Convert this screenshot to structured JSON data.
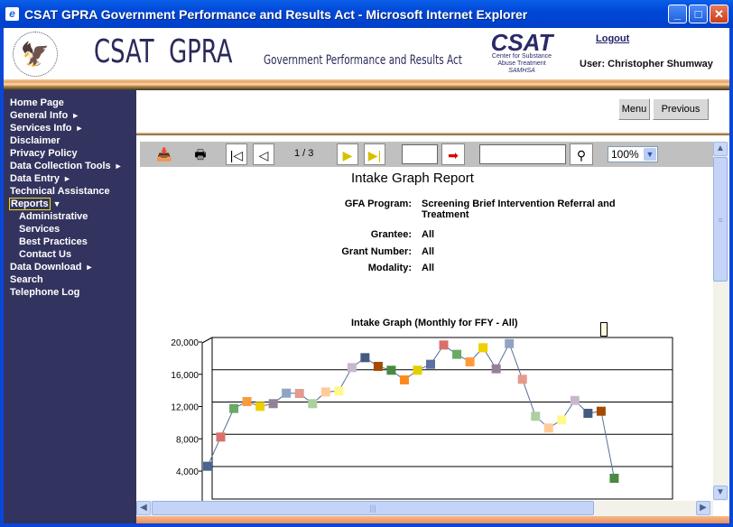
{
  "window": {
    "title": "CSAT GPRA Government Performance and Results Act - Microsoft Internet Explorer"
  },
  "header": {
    "brand": "CSAT  GPRA",
    "brand_sub": "Government Performance and Results Act",
    "csat_logo": "CSAT",
    "csat_lines": [
      "Center for Substance",
      "Abuse Treatment",
      "SAMHSA"
    ],
    "logout": "Logout",
    "user": "User: Christopher Shumway"
  },
  "sidebar": {
    "items": [
      {
        "label": "Home Page"
      },
      {
        "label": "General Info",
        "arrow": "►"
      },
      {
        "label": "Services Info",
        "arrow": "►"
      },
      {
        "label": "Disclaimer"
      },
      {
        "label": "Privacy Policy"
      },
      {
        "label": "Data Collection Tools",
        "arrow": "►"
      },
      {
        "label": "Data Entry",
        "arrow": "►"
      },
      {
        "label": "Technical Assistance"
      },
      {
        "label": "Reports",
        "arrow": "▼"
      },
      {
        "label": "Administrative"
      },
      {
        "label": "Services"
      },
      {
        "label": "Best Practices"
      },
      {
        "label": "Contact Us"
      },
      {
        "label": "Data Download",
        "arrow": "►"
      },
      {
        "label": "Search"
      },
      {
        "label": "Telephone Log"
      }
    ]
  },
  "buttons": {
    "menu": "Menu",
    "previous": "Previous"
  },
  "viewer": {
    "page": "1 / 3",
    "zoom": "100%",
    "goto_value": "",
    "search_value": ""
  },
  "report": {
    "title": "Intake Graph Report",
    "fields": [
      {
        "label": "GFA Program:",
        "value": "Screening Brief Intervention Referral and Treatment"
      },
      {
        "label": "Grantee:",
        "value": "All"
      },
      {
        "label": "Grant Number:",
        "value": "All"
      },
      {
        "label": "Modality:",
        "value": "All"
      }
    ]
  },
  "chart_data": {
    "type": "line",
    "title": "Intake Graph (Monthly for FFY - All)",
    "ylim": [
      0,
      20000
    ],
    "yticks": [
      "20,000",
      "16,000",
      "12,000",
      "8,000",
      "4,000"
    ],
    "ytick_values": [
      20000,
      16000,
      12000,
      8000,
      4000
    ],
    "grid": true,
    "values": [
      4600,
      8220,
      11760,
      12620,
      12020,
      12360,
      13660,
      13620,
      12360,
      13810,
      13930,
      16830,
      18060,
      16980,
      16500,
      15300,
      16500,
      17240,
      19630,
      18470,
      17540,
      19290,
      16680,
      19810,
      15380,
      10790,
      9340,
      10350,
      12760,
      11160,
      11420,
      3110
    ],
    "line_color": "#5a6e98",
    "marker_colors": [
      "#4a6490",
      "#d9706a",
      "#6aaa64",
      "#ff9a3a",
      "#eed000",
      "#958099",
      "#8ea4c2",
      "#e49a8c",
      "#acd0a0",
      "#ffcc99",
      "#fff88a",
      "#c8b8cc",
      "#445a80",
      "#a54a00",
      "#4a8a40",
      "#ff8a20",
      "#e0d000",
      "#5a70a0",
      "#d9706a",
      "#6aaa64",
      "#ff9a3a",
      "#eed000",
      "#958099",
      "#8ea4c2",
      "#e49a8c",
      "#acd0a0",
      "#ffcc99",
      "#fff88a",
      "#c8b8cc",
      "#445a80",
      "#a54a00",
      "#4a8a40"
    ]
  }
}
